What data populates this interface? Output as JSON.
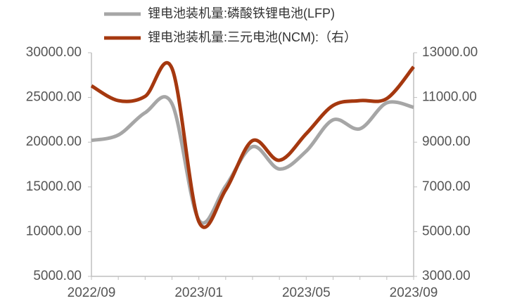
{
  "chart_data": {
    "type": "line",
    "categories": [
      "2022/09",
      null,
      null,
      null,
      "2023/01",
      null,
      null,
      null,
      "2023/05",
      null,
      null,
      null,
      "2023/09"
    ],
    "series": [
      {
        "name": "锂电池装机量:磷酸铁锂电池(LFP)",
        "color": "#a6a6a6",
        "axis": "y",
        "values": [
          20200,
          20800,
          23300,
          24300,
          11300,
          15100,
          19500,
          17000,
          19000,
          22500,
          21500,
          24400,
          23900
        ]
      },
      {
        "name": "锂电池装机量:三元电池(NCM):（右）",
        "color": "#a5380f",
        "axis": "y2",
        "values": [
          11520,
          10860,
          11050,
          12300,
          5450,
          6870,
          9070,
          8190,
          9380,
          10640,
          10860,
          10950,
          12370
        ]
      }
    ],
    "ylim": [
      5000,
      30000
    ],
    "yticks": [
      {
        "value": 5000,
        "label": "5000.00"
      },
      {
        "value": 10000,
        "label": "10000.00"
      },
      {
        "value": 15000,
        "label": "15000.00"
      },
      {
        "value": 20000,
        "label": "20000.00"
      },
      {
        "value": 25000,
        "label": "25000.00"
      },
      {
        "value": 30000,
        "label": "30000.00"
      }
    ],
    "y2lim": [
      3000,
      13000
    ],
    "y2ticks": [
      {
        "value": 3000,
        "label": "3000.00"
      },
      {
        "value": 5000,
        "label": "5000.00"
      },
      {
        "value": 7000,
        "label": "7000.00"
      },
      {
        "value": 9000,
        "label": "9000.00"
      },
      {
        "value": 11000,
        "label": "11000.00"
      },
      {
        "value": 13000,
        "label": "13000.00"
      }
    ],
    "legend": "top"
  }
}
